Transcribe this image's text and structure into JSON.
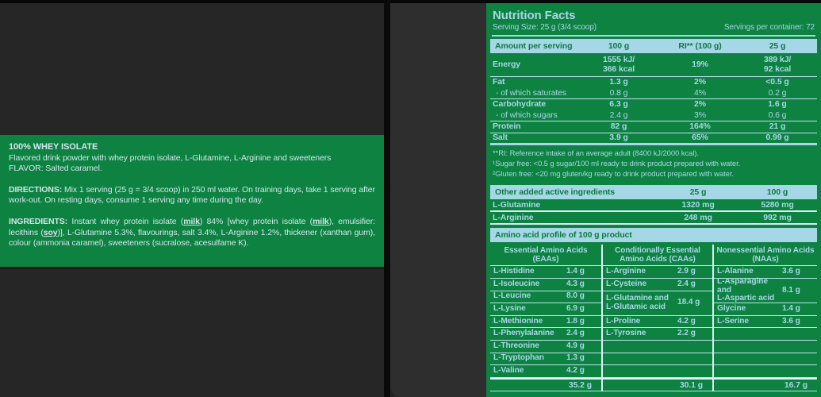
{
  "left_panel": {
    "title": "100% WHEY ISOLATE",
    "subtitle": "Flavored drink powder with whey protein isolate, L-Glutamine, L-Arginine and sweeteners",
    "flavor_line": "FLAVOR: Salted caramel.",
    "directions_label": "DIRECTIONS:",
    "directions_text": "Mix 1 serving (25 g = 3/4 scoop) in 250 ml water. On training days, take 1 serving after work-out. On resting days, consume 1 serving any time during the day.",
    "ingredients_label": "INGREDIENTS:",
    "ingredients_segments": [
      {
        "t": "Instant whey protein isolate ("
      },
      {
        "t": "milk",
        "u": true
      },
      {
        "t": ") 84% [whey protein isolate ("
      },
      {
        "t": "milk",
        "u": true
      },
      {
        "t": "), emulsifier: lecithins ("
      },
      {
        "t": "soy",
        "u": true
      },
      {
        "t": ")], L-Glutamine 5.3%, flavourings, salt 3.4%, L-Arginine 1.2%, thickener (xanthan gum), colour (ammonia caramel), sweeteners (sucralose, acesulfame K)."
      }
    ]
  },
  "nutrition": {
    "title": "Nutrition Facts",
    "serving_size": "Serving Size: 25 g (3/4 scoop)",
    "servings_per_container": "Servings per container: 72",
    "main_table": {
      "headers": [
        "Amount per serving",
        "100 g",
        "RI** (100 g)",
        "25 g"
      ],
      "rows": [
        {
          "label": "Energy",
          "v1": "1555 kJ/\n366 kcal",
          "v2": "19%",
          "v3": "389 kJ/\n92 kcal"
        },
        {
          "label": "Fat",
          "v1": "1.3 g",
          "v2": "2%",
          "v3": "<0.5 g"
        },
        {
          "label": "- of which saturates",
          "v1": "0.8 g",
          "v2": "4%",
          "v3": "0.2 g"
        },
        {
          "label": "Carbohydrate",
          "v1": "6.3 g",
          "v2": "2%",
          "v3": "1.6 g"
        },
        {
          "label": "- of which sugars",
          "v1": "2.4 g",
          "v2": "3%",
          "v3": "0.6 g"
        },
        {
          "label": "Protein",
          "v1": "82 g",
          "v2": "164%",
          "v3": "21 g"
        },
        {
          "label": "Salt",
          "v1": "3.9 g",
          "v2": "65%",
          "v3": "0.99 g"
        }
      ]
    },
    "footnotes": [
      "**RI: Reference intake of an average adult (8400 kJ/2000 kcal).",
      "¹Sugar free: <0.5 g sugar/100 ml ready to drink product prepared with water.",
      "²Gluten free: <20 mg gluten/kg ready to drink product prepared with water."
    ],
    "other_active": {
      "headers": [
        "Other added active ingredients",
        "25 g",
        "100 g"
      ],
      "rows": [
        {
          "label": "L-Glutamine",
          "v1": "1320 mg",
          "v2": "5280 mg"
        },
        {
          "label": "L-Arginine",
          "v1": "248 mg",
          "v2": "992 mg"
        }
      ]
    },
    "amino_profile": {
      "section_title": "Amino acid profile of 100 g product",
      "columns": [
        {
          "header": "Essential Amino Acids\n(EAAs)",
          "rows": [
            {
              "name": "L-Histidine",
              "value": "1.4 g"
            },
            {
              "name": "L-Isoleucine",
              "value": "4.3 g"
            },
            {
              "name": "L-Leucine",
              "value": "8.0 g"
            },
            {
              "name": "L-Lysine",
              "value": "6.9 g"
            },
            {
              "name": "L-Methionine",
              "value": "1.8 g"
            },
            {
              "name": "L-Phenylalanine",
              "value": "2.4 g"
            },
            {
              "name": "L-Threonine",
              "value": "4.9 g"
            },
            {
              "name": "L-Tryptophan",
              "value": "1.3 g"
            },
            {
              "name": "L-Valine",
              "value": "4.2 g"
            }
          ],
          "total": "35.2 g"
        },
        {
          "header": "Conditionally Essential\nAmino Acids (CAAs)",
          "rows": [
            {
              "name": "L-Arginine",
              "value": "2.9 g"
            },
            {
              "name": "L-Cysteine",
              "value": "2.4 g"
            },
            {
              "name": "L-Glutamine and\nL-Glutamic acid",
              "value": "18.4 g",
              "span": 2
            },
            {
              "name": "L-Proline",
              "value": "4.2 g"
            },
            {
              "name": "L-Tyrosine",
              "value": "2.2 g"
            },
            {
              "name": "",
              "value": ""
            },
            {
              "name": "",
              "value": ""
            },
            {
              "name": "",
              "value": ""
            }
          ],
          "total": "30.1 g"
        },
        {
          "header": "Nonessential Amino Acids\n(NAAs)",
          "rows": [
            {
              "name": "L-Alanine",
              "value": "3.6 g"
            },
            {
              "name": "L-Asparagine and\nL-Aspartic acid",
              "value": "8.1 g",
              "span": 2
            },
            {
              "name": "Glycine",
              "value": "1.4 g"
            },
            {
              "name": "L-Serine",
              "value": "3.6 g"
            },
            {
              "name": "",
              "value": ""
            },
            {
              "name": "",
              "value": ""
            },
            {
              "name": "",
              "value": ""
            },
            {
              "name": "",
              "value": ""
            }
          ],
          "total": "16.7 g"
        }
      ]
    }
  },
  "colors": {
    "brand_green": "#0d8241",
    "band_blue": "#a6d7e7",
    "text_blue": "#a8d7e7",
    "left_text": "#d3e6ec",
    "background_dark": "#262626",
    "card_dark": "#2e2e2e"
  }
}
